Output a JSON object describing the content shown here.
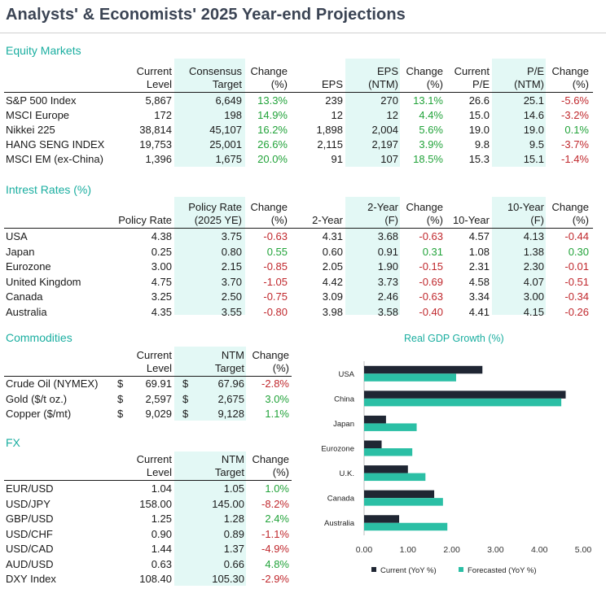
{
  "title": "Analysts' & Economists' 2025 Year-end Projections",
  "equity": {
    "title": "Equity Markets",
    "headers": [
      "Current\nLevel",
      "Consensus\nTarget",
      "Change\n(%)",
      "EPS",
      "EPS\n(NTM)",
      "Change\n(%)",
      "Current\nP/E",
      "P/E\n(NTM)",
      "Change\n(%)"
    ],
    "rows": [
      {
        "name": "S&P 500 Index",
        "vals": [
          "5,867",
          "6,649",
          "13.3%",
          "239",
          "270",
          "13.1%",
          "26.6",
          "25.1",
          "-5.6%"
        ]
      },
      {
        "name": "MSCI Europe",
        "vals": [
          "172",
          "198",
          "14.9%",
          "12",
          "12",
          "4.4%",
          "15.0",
          "14.6",
          "-3.2%"
        ]
      },
      {
        "name": "Nikkei 225",
        "vals": [
          "38,814",
          "45,107",
          "16.2%",
          "1,898",
          "2,004",
          "5.6%",
          "19.0",
          "19.0",
          "0.1%"
        ]
      },
      {
        "name": "HANG SENG INDEX",
        "vals": [
          "19,753",
          "25,001",
          "26.6%",
          "2,115",
          "2,197",
          "3.9%",
          "9.8",
          "9.5",
          "-3.7%"
        ]
      },
      {
        "name": "MSCI EM (ex-China)",
        "vals": [
          "1,396",
          "1,675",
          "20.0%",
          "91",
          "107",
          "18.5%",
          "15.3",
          "15.1",
          "-1.4%"
        ]
      }
    ]
  },
  "rates": {
    "title": "Intrest Rates (%)",
    "headers": [
      "Policy Rate",
      "Policy Rate\n(2025 YE)",
      "Change\n(%)",
      "2-Year",
      "2-Year\n(F)",
      "Change\n(%)",
      "10-Year",
      "10-Year\n(F)",
      "Change\n(%)"
    ],
    "rows": [
      {
        "name": "USA",
        "vals": [
          "4.38",
          "3.75",
          "-0.63",
          "4.31",
          "3.68",
          "-0.63",
          "4.57",
          "4.13",
          "-0.44"
        ]
      },
      {
        "name": "Japan",
        "vals": [
          "0.25",
          "0.80",
          "0.55",
          "0.60",
          "0.91",
          "0.31",
          "1.08",
          "1.38",
          "0.30"
        ]
      },
      {
        "name": "Eurozone",
        "vals": [
          "3.00",
          "2.15",
          "-0.85",
          "2.05",
          "1.90",
          "-0.15",
          "2.31",
          "2.30",
          "-0.01"
        ]
      },
      {
        "name": "United  Kingdom",
        "vals": [
          "4.75",
          "3.70",
          "-1.05",
          "4.42",
          "3.73",
          "-0.69",
          "4.58",
          "4.07",
          "-0.51"
        ]
      },
      {
        "name": "Canada",
        "vals": [
          "3.25",
          "2.50",
          "-0.75",
          "3.09",
          "2.46",
          "-0.63",
          "3.34",
          "3.00",
          "-0.34"
        ]
      },
      {
        "name": "Australia",
        "vals": [
          "4.35",
          "3.55",
          "-0.80",
          "3.98",
          "3.58",
          "-0.40",
          "4.41",
          "4.15",
          "-0.26"
        ]
      }
    ]
  },
  "commodities": {
    "title": "Commodities",
    "headers": [
      "Current\nLevel",
      "NTM\nTarget",
      "Change\n(%)"
    ],
    "currency": "$",
    "rows": [
      {
        "name": "Crude Oil (NYMEX)",
        "vals": [
          "69.91",
          "67.96",
          "-2.8%"
        ]
      },
      {
        "name": "Gold ($/t oz.)",
        "vals": [
          "2,597",
          "2,675",
          "3.0%"
        ]
      },
      {
        "name": "Copper ($/mt)",
        "vals": [
          "9,029",
          "9,128",
          "1.1%"
        ]
      }
    ]
  },
  "fx": {
    "title": "FX",
    "headers": [
      "Current\nLevel",
      "NTM\nTarget",
      "Change\n(%)"
    ],
    "rows": [
      {
        "name": "EUR/USD",
        "vals": [
          "1.04",
          "1.05",
          "1.0%"
        ]
      },
      {
        "name": "USD/JPY",
        "vals": [
          "158.00",
          "145.00",
          "-8.2%"
        ]
      },
      {
        "name": "GBP/USD",
        "vals": [
          "1.25",
          "1.28",
          "2.4%"
        ]
      },
      {
        "name": "USD/CHF",
        "vals": [
          "0.90",
          "0.89",
          "-1.1%"
        ]
      },
      {
        "name": "USD/CAD",
        "vals": [
          "1.44",
          "1.37",
          "-4.9%"
        ]
      },
      {
        "name": "AUD/USD",
        "vals": [
          "0.63",
          "0.66",
          "4.8%"
        ]
      },
      {
        "name": "DXY Index",
        "vals": [
          "108.40",
          "105.30",
          "-2.9%"
        ]
      }
    ]
  },
  "chart_data": {
    "type": "bar",
    "orientation": "horizontal",
    "title": "Real GDP Growth (%)",
    "categories": [
      "USA",
      "China",
      "Japan",
      "Eurozone",
      "U.K.",
      "Canada",
      "Australia"
    ],
    "series": [
      {
        "name": "Current (YoY %)",
        "color": "#1f2633",
        "values": [
          2.7,
          4.6,
          0.5,
          0.4,
          1.0,
          1.6,
          0.8
        ]
      },
      {
        "name": "Forecasted (YoY %)",
        "color": "#2bbfa5",
        "values": [
          2.1,
          4.5,
          1.2,
          1.1,
          1.4,
          1.8,
          1.9
        ]
      }
    ],
    "xlim": [
      0,
      5
    ],
    "xticks": [
      "0.00",
      "1.00",
      "2.00",
      "3.00",
      "4.00",
      "5.00"
    ],
    "grid": false,
    "legend": "bottom"
  }
}
